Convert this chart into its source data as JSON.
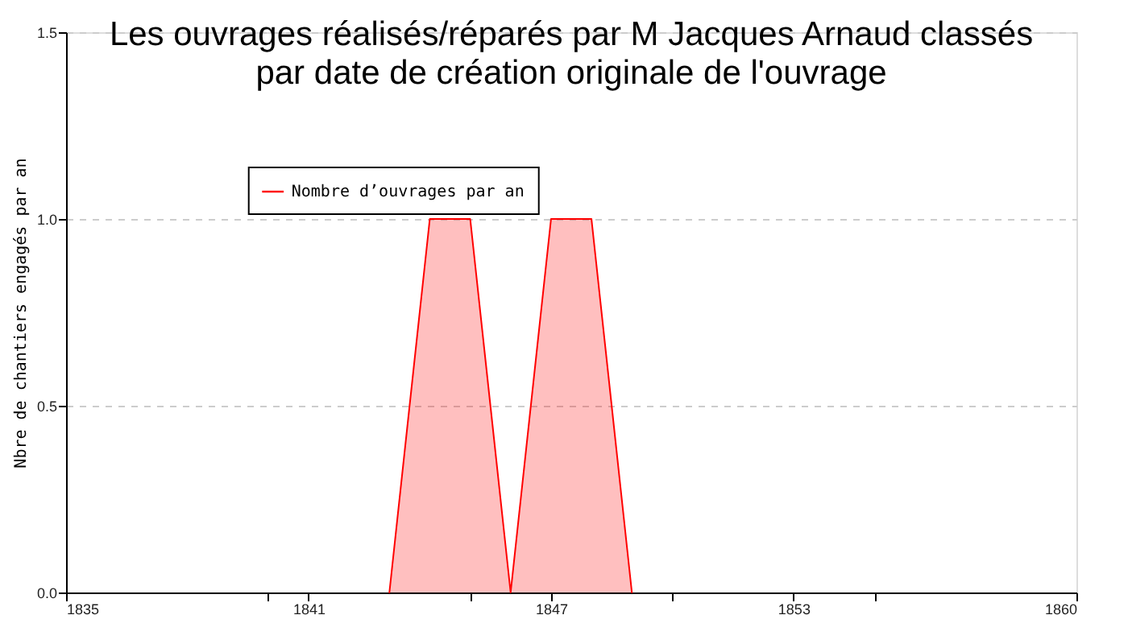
{
  "chart_data": {
    "type": "area",
    "title": "Les ouvrages réalisés/réparés par M Jacques Arnaud classés\npar date de création originale de l'ouvrage",
    "ylabel": "Nbre de chantiers engagés par an",
    "x": [
      1843,
      1844,
      1845,
      1846,
      1847,
      1848,
      1849
    ],
    "series": [
      {
        "name": "Nombre d’ouvrages par an",
        "color": "#ff0000",
        "values": [
          0,
          1,
          1,
          0,
          1,
          1,
          0
        ]
      }
    ],
    "xlim": [
      1835,
      1860
    ],
    "xticks": [
      1835,
      {
        "value": 1840,
        "label": null
      },
      1841,
      {
        "value": 1845,
        "label": null
      },
      1847,
      {
        "value": 1850,
        "label": null
      },
      1853,
      {
        "value": 1855,
        "label": null
      },
      1860
    ],
    "ylim": [
      0,
      1.5
    ],
    "yticks": [
      {
        "value": 0,
        "label": "0.0"
      },
      0.5,
      {
        "value": 1,
        "label": "1.0"
      },
      1.5
    ],
    "grid": "y",
    "legend": "top left",
    "line_style": "solid"
  }
}
